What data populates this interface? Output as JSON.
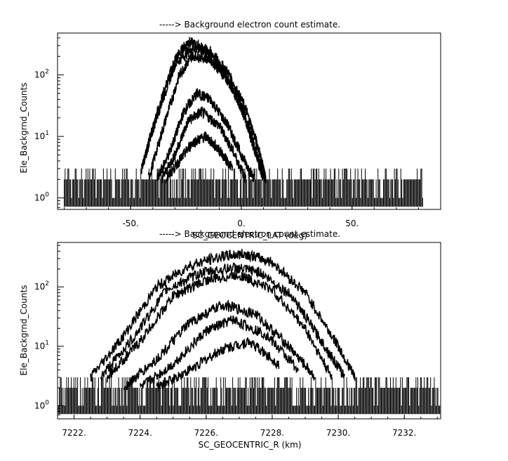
{
  "chart_data": [
    {
      "type": "line",
      "title": "-----> Background electron count estimate.",
      "xlabel": "SC_GEOCENTRIC_LAT (deg)",
      "ylabel": "Ele_Backgrnd_Counts",
      "xlim": [
        -83,
        90
      ],
      "ylim": [
        0.65,
        480
      ],
      "yscale": "log",
      "xticks": [
        -50,
        0,
        50
      ],
      "xtick_labels": [
        "-50.",
        "0.",
        "50."
      ],
      "yticks": [
        1,
        10,
        100
      ],
      "ytick_labels": [
        "10^0",
        "10^1",
        "10^2"
      ],
      "grid": false,
      "series": [
        {
          "x": [
            -45,
            -38,
            -30,
            -24,
            -16,
            -8,
            0,
            6,
            10
          ],
          "y": [
            3,
            25,
            180,
            350,
            260,
            110,
            30,
            6,
            2
          ]
        },
        {
          "x": [
            -45,
            -38,
            -30,
            -22,
            -14,
            -6,
            2,
            8,
            11
          ],
          "y": [
            3,
            22,
            150,
            280,
            240,
            110,
            28,
            6,
            2
          ]
        },
        {
          "x": [
            -42,
            -35,
            -28,
            -22,
            -14,
            -6,
            2,
            8,
            11
          ],
          "y": [
            2,
            15,
            100,
            210,
            180,
            80,
            20,
            4,
            2
          ]
        },
        {
          "x": [
            -38,
            -32,
            -26,
            -20,
            -14,
            -6,
            0,
            6
          ],
          "y": [
            2,
            6,
            25,
            50,
            40,
            15,
            5,
            2
          ]
        },
        {
          "x": [
            -36,
            -30,
            -24,
            -18,
            -10,
            -4,
            2
          ],
          "y": [
            2,
            5,
            18,
            25,
            15,
            6,
            2
          ]
        },
        {
          "x": [
            -34,
            -28,
            -22,
            -16,
            -10,
            -4
          ],
          "y": [
            2,
            4,
            8,
            10,
            6,
            3
          ]
        }
      ]
    },
    {
      "type": "line",
      "title": "-----> Background electron count estimate.",
      "xlabel": "SC_GEOCENTRIC_R (km)",
      "ylabel": "Ele_Backgrnd_Counts",
      "xlim": [
        7221.5,
        7233.1
      ],
      "ylim": [
        0.6,
        560
      ],
      "yscale": "log",
      "xticks": [
        7222,
        7224,
        7226,
        7228,
        7230,
        7232
      ],
      "xtick_labels": [
        "7222.",
        "7224.",
        "7226.",
        "7228.",
        "7230.",
        "7232."
      ],
      "yticks": [
        1,
        10,
        100
      ],
      "ytick_labels": [
        "10^0",
        "10^1",
        "10^2"
      ],
      "grid": false,
      "series": [
        {
          "x": [
            7222.5,
            7223.5,
            7224.5,
            7225.5,
            7226.5,
            7227.2,
            7228,
            7229,
            7230,
            7230.5
          ],
          "y": [
            3,
            15,
            100,
            230,
            330,
            360,
            260,
            80,
            10,
            3
          ]
        },
        {
          "x": [
            7222.8,
            7223.8,
            7224.8,
            7225.8,
            7226.8,
            7227.6,
            7228.6,
            7229.5,
            7230.2
          ],
          "y": [
            3,
            14,
            90,
            170,
            210,
            180,
            70,
            12,
            3
          ]
        },
        {
          "x": [
            7223,
            7224,
            7225,
            7226,
            7227,
            7228,
            7229,
            7229.8
          ],
          "y": [
            3,
            12,
            70,
            130,
            160,
            90,
            20,
            3
          ]
        },
        {
          "x": [
            7223.5,
            7224.5,
            7225.5,
            7226.5,
            7227.5,
            7228.5,
            7229.3
          ],
          "y": [
            2,
            6,
            25,
            50,
            35,
            10,
            3
          ]
        },
        {
          "x": [
            7224,
            7225,
            7226,
            7226.8,
            7227.8,
            7228.8
          ],
          "y": [
            2,
            5,
            18,
            28,
            16,
            4
          ]
        },
        {
          "x": [
            7224.5,
            7225.5,
            7226.5,
            7227.3,
            7228.2
          ],
          "y": [
            2,
            4,
            9,
            12,
            5
          ]
        }
      ]
    }
  ]
}
